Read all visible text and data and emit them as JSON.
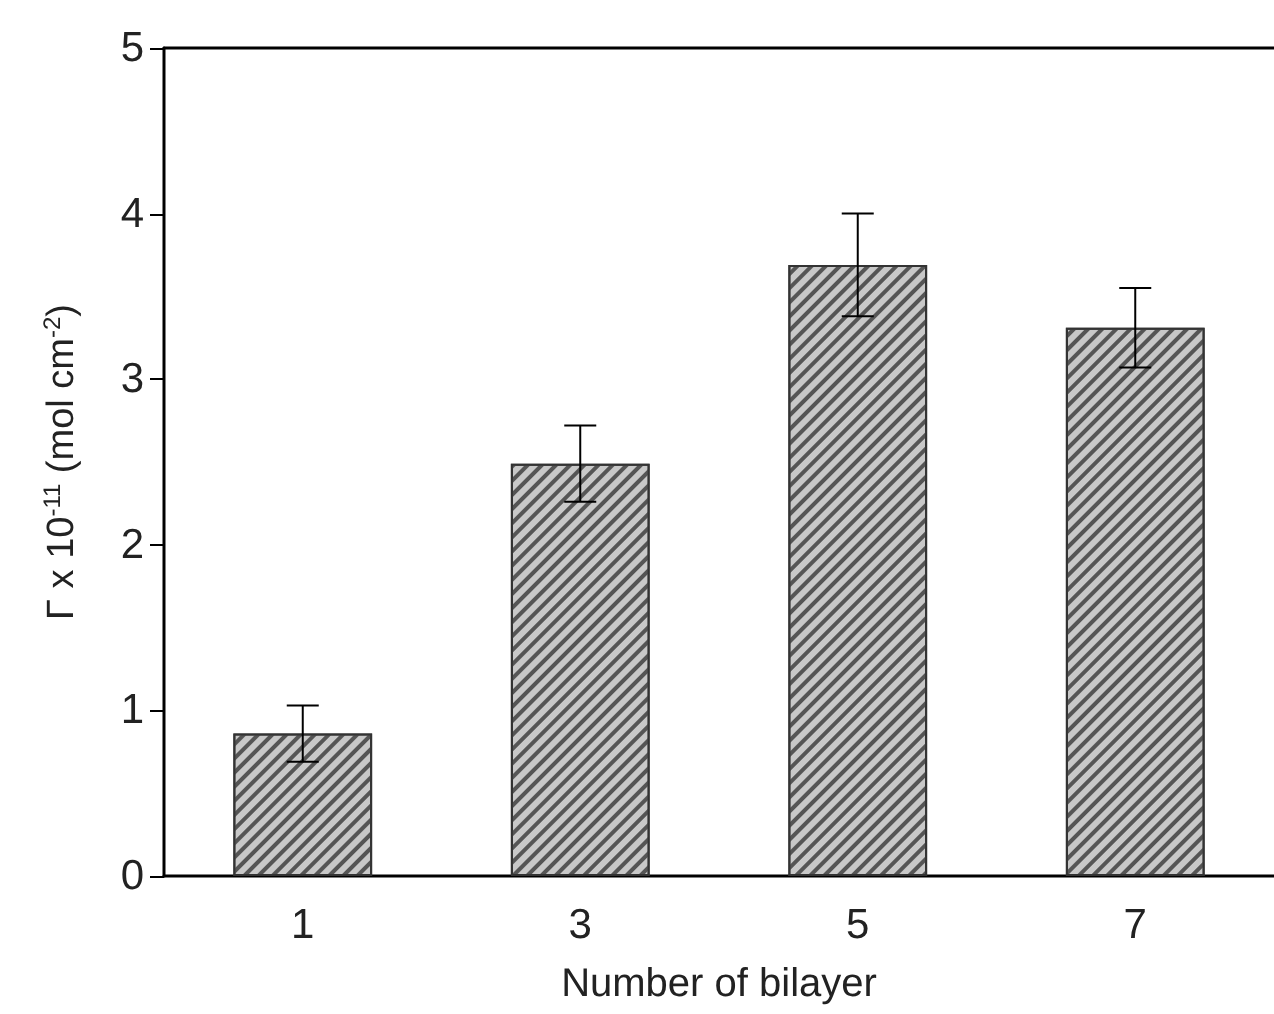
{
  "chart_data": {
    "type": "bar",
    "xlabel": "Number of bilayer",
    "ylabel": "Γ x 10$^{-11}$ (mol cm$^{-2}$)",
    "categories": [
      "1",
      "3",
      "5",
      "7"
    ],
    "values": [
      0.86,
      2.49,
      3.69,
      3.31
    ],
    "errors": [
      0.17,
      0.23,
      0.31,
      0.24
    ],
    "color": "#c8c8c8",
    "ylim": [
      0,
      5
    ],
    "yticks": [
      0,
      1,
      2,
      3,
      4,
      5
    ],
    "grid": false
  }
}
